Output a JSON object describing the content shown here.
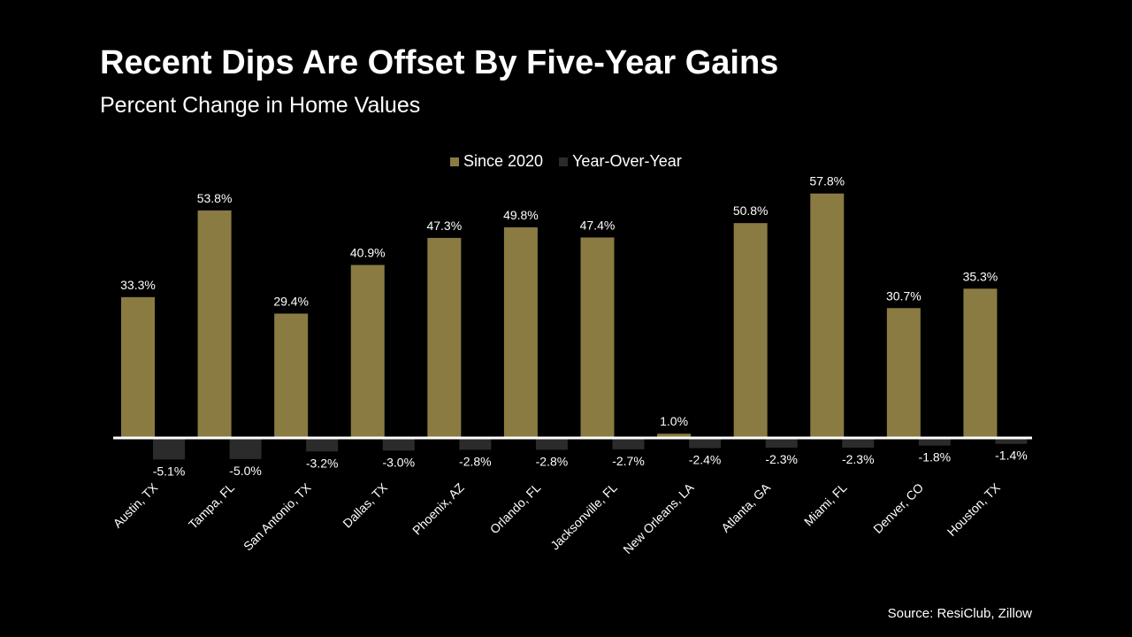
{
  "header": {
    "title": "Recent Dips Are Offset By Five-Year Gains",
    "subtitle": "Percent Change in Home Values"
  },
  "source": "Source: ResiClub, Zillow",
  "colors": {
    "background": "#000000",
    "since_2020": "#8a7b43",
    "year_over_year": "#2b2b2b",
    "axis": "#ffffff",
    "text": "#ffffff"
  },
  "legend": {
    "items": [
      {
        "label": "Since 2020",
        "color": "#8a7b43"
      },
      {
        "label": "Year-Over-Year",
        "color": "#2b2b2b"
      }
    ]
  },
  "chart_data": {
    "type": "bar",
    "title": "Recent Dips Are Offset By Five-Year Gains",
    "subtitle": "Percent Change in Home Values",
    "xlabel": "",
    "ylabel": "",
    "grid": false,
    "legend_position": "top-center",
    "ylim": [
      -6,
      60
    ],
    "categories": [
      "Austin, TX",
      "Tampa, FL",
      "San Antonio, TX",
      "Dallas, TX",
      "Phoenix, AZ",
      "Orlando, FL",
      "Jacksonville, FL",
      "New Orleans, LA",
      "Atlanta, GA",
      "Miami, FL",
      "Denver, CO",
      "Houston, TX"
    ],
    "series": [
      {
        "name": "Since 2020",
        "values": [
          33.3,
          53.8,
          29.4,
          40.9,
          47.3,
          49.8,
          47.4,
          1.0,
          50.8,
          57.8,
          30.7,
          35.3
        ],
        "labels": [
          "33.3%",
          "53.8%",
          "29.4%",
          "40.9%",
          "47.3%",
          "49.8%",
          "47.4%",
          "1.0%",
          "50.8%",
          "57.8%",
          "30.7%",
          "35.3%"
        ]
      },
      {
        "name": "Year-Over-Year",
        "values": [
          -5.1,
          -5.0,
          -3.2,
          -3.0,
          -2.8,
          -2.8,
          -2.7,
          -2.4,
          -2.3,
          -2.3,
          -1.8,
          -1.4
        ],
        "labels": [
          "-5.1%",
          "-5.0%",
          "-3.2%",
          "-3.0%",
          "-2.8%",
          "-2.8%",
          "-2.7%",
          "-2.4%",
          "-2.3%",
          "-2.3%",
          "-1.8%",
          "-1.4%"
        ]
      }
    ]
  }
}
